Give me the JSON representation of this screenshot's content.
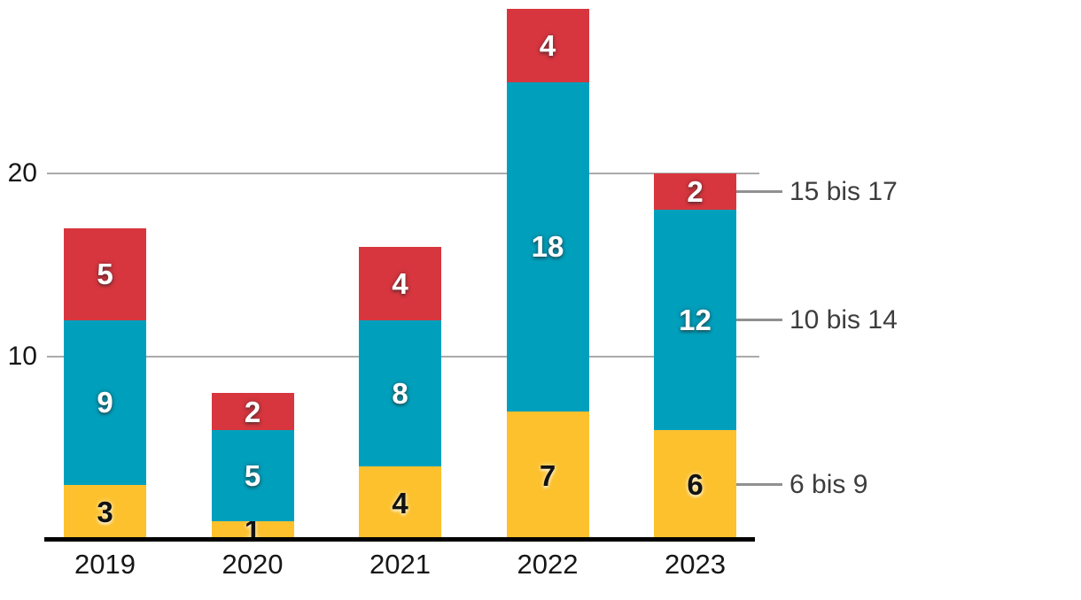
{
  "chart_data": {
    "type": "bar",
    "stacked": true,
    "title": "",
    "xlabel": "",
    "ylabel": "",
    "categories": [
      "2019",
      "2020",
      "2021",
      "2022",
      "2023"
    ],
    "series": [
      {
        "name": "6 bis 9",
        "color": "#fcc12d",
        "value_label_style": "dark",
        "values": [
          3,
          1,
          4,
          7,
          6
        ]
      },
      {
        "name": "10 bis 14",
        "color": "#00a0bd",
        "value_label_style": "light",
        "values": [
          9,
          5,
          8,
          18,
          12
        ]
      },
      {
        "name": "15 bis 17",
        "color": "#d8363f",
        "value_label_style": "light",
        "values": [
          5,
          2,
          4,
          4,
          2
        ]
      }
    ],
    "totals": [
      17,
      8,
      16,
      29,
      20
    ],
    "yticks": [
      10,
      20
    ],
    "ylim": [
      0,
      29
    ],
    "grid": true,
    "legend_position": "right-of-last-bar"
  },
  "colors": {
    "background": "#ffffff",
    "gridline": "#ababab",
    "axis_line": "#000000",
    "legend_connector": "#909090",
    "legend_label": "#3d3d3d",
    "tick_label": "#161616"
  }
}
